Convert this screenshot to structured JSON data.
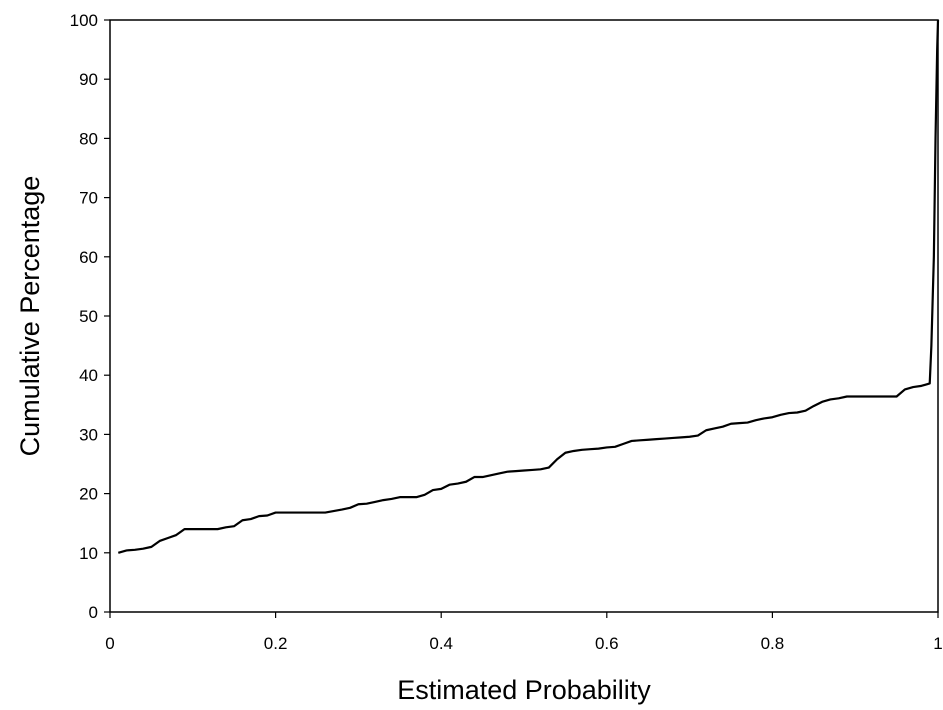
{
  "chart_data": {
    "type": "line",
    "title": "",
    "xlabel": "Estimated Probability",
    "ylabel": "Cumulative Percentage",
    "xlim": [
      0,
      1
    ],
    "ylim": [
      0,
      100
    ],
    "x_ticks": [
      0,
      0.2,
      0.4,
      0.6,
      0.8,
      1
    ],
    "x_tick_labels": [
      "0",
      "0.2",
      "0.4",
      "0.6",
      "0.8",
      "1"
    ],
    "y_ticks": [
      0,
      10,
      20,
      30,
      40,
      50,
      60,
      70,
      80,
      90,
      100
    ],
    "y_tick_labels": [
      "0",
      "10",
      "20",
      "30",
      "40",
      "50",
      "60",
      "70",
      "80",
      "90",
      "100"
    ],
    "grid": false,
    "legend": "none",
    "line_color": "#000000",
    "series": [
      {
        "x": [
          0.01,
          0.02,
          0.03,
          0.04,
          0.05,
          0.06,
          0.07,
          0.08,
          0.09,
          0.1,
          0.12,
          0.13,
          0.14,
          0.15,
          0.16,
          0.17,
          0.18,
          0.19,
          0.2,
          0.22,
          0.24,
          0.26,
          0.28,
          0.29,
          0.3,
          0.31,
          0.32,
          0.33,
          0.34,
          0.35,
          0.37,
          0.38,
          0.39,
          0.4,
          0.41,
          0.42,
          0.43,
          0.44,
          0.45,
          0.47,
          0.48,
          0.49,
          0.5,
          0.51,
          0.52,
          0.53,
          0.54,
          0.55,
          0.56,
          0.57,
          0.58,
          0.59,
          0.6,
          0.61,
          0.62,
          0.63,
          0.64,
          0.65,
          0.66,
          0.67,
          0.68,
          0.69,
          0.7,
          0.71,
          0.72,
          0.73,
          0.74,
          0.75,
          0.76,
          0.77,
          0.78,
          0.79,
          0.8,
          0.81,
          0.82,
          0.83,
          0.84,
          0.85,
          0.86,
          0.87,
          0.88,
          0.89,
          0.9,
          0.92,
          0.94,
          0.95,
          0.96,
          0.97,
          0.98,
          0.985,
          0.99,
          0.992,
          0.995,
          0.997,
          0.999,
          1.0
        ],
        "y": [
          10.0,
          10.4,
          10.5,
          10.7,
          11.0,
          12.0,
          12.5,
          13.0,
          14.0,
          14.0,
          14.0,
          14.0,
          14.3,
          14.5,
          15.5,
          15.7,
          16.2,
          16.3,
          16.8,
          16.8,
          16.8,
          16.8,
          17.3,
          17.6,
          18.2,
          18.3,
          18.6,
          18.9,
          19.1,
          19.4,
          19.4,
          19.8,
          20.6,
          20.8,
          21.5,
          21.7,
          22.0,
          22.8,
          22.8,
          23.4,
          23.7,
          23.8,
          23.9,
          24.0,
          24.1,
          24.4,
          25.8,
          26.9,
          27.2,
          27.4,
          27.5,
          27.6,
          27.8,
          27.9,
          28.4,
          28.9,
          29.0,
          29.1,
          29.2,
          29.3,
          29.4,
          29.5,
          29.6,
          29.8,
          30.7,
          31.0,
          31.3,
          31.8,
          31.9,
          32.0,
          32.4,
          32.7,
          32.9,
          33.3,
          33.6,
          33.7,
          34.0,
          34.8,
          35.5,
          35.9,
          36.1,
          36.4,
          36.4,
          36.4,
          36.4,
          36.4,
          37.6,
          38.0,
          38.2,
          38.4,
          38.6,
          45.0,
          60.0,
          80.0,
          95.0,
          100.0
        ]
      }
    ]
  }
}
